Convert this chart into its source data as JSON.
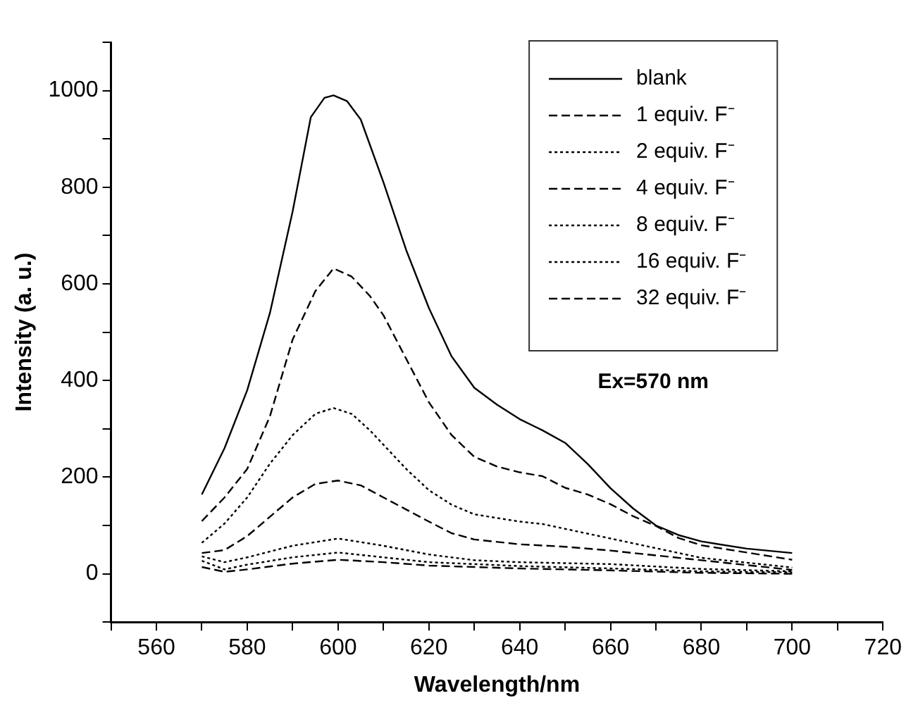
{
  "chart_data": {
    "type": "line",
    "xlabel": "Wavelength/nm",
    "ylabel": "Intensity (a. u.)",
    "xlim": [
      550,
      720
    ],
    "xticks": [
      {
        "value": 550,
        "label": null
      },
      560,
      {
        "value": 570,
        "label": null
      },
      580,
      {
        "value": 590,
        "label": null
      },
      600,
      {
        "value": 610,
        "label": null
      },
      620,
      {
        "value": 630,
        "label": null
      },
      640,
      {
        "value": 650,
        "label": null
      },
      660,
      {
        "value": 670,
        "label": null
      },
      680,
      {
        "value": 690,
        "label": null
      },
      700,
      {
        "value": 710,
        "label": null
      },
      720
    ],
    "ylim": [
      -100,
      1100
    ],
    "yticks": [
      {
        "value": -100,
        "label": null
      },
      0,
      {
        "value": 100,
        "label": null
      },
      200,
      {
        "value": 300,
        "label": null
      },
      400,
      {
        "value": 500,
        "label": null
      },
      600,
      {
        "value": 700,
        "label": null
      },
      800,
      {
        "value": 900,
        "label": null
      },
      1000,
      {
        "value": 1100,
        "label": null
      }
    ],
    "grid": false,
    "legend": "top right",
    "marker": "none",
    "annotations": [
      "Ex=570 nm"
    ],
    "series": [
      {
        "name": "blank",
        "color": "#000000",
        "line_style": "solid",
        "x": [
          570,
          575,
          580,
          585,
          590,
          594,
          597,
          599,
          602,
          605,
          610,
          615,
          620,
          625,
          630,
          635,
          640,
          645,
          650,
          655,
          660,
          665,
          670,
          675,
          680,
          690,
          700
        ],
        "values": [
          164,
          260,
          380,
          540,
          750,
          945,
          985,
          990,
          978,
          940,
          810,
          670,
          550,
          450,
          385,
          350,
          320,
          297,
          271,
          227,
          177,
          135,
          100,
          80,
          67,
          52,
          43
        ]
      },
      {
        "name": "1 equiv. F⁻",
        "color": "#000000",
        "line_style": "dashed",
        "x": [
          570,
          575,
          580,
          585,
          590,
          595,
          599,
          603,
          607,
          610,
          615,
          620,
          625,
          630,
          635,
          640,
          645,
          650,
          655,
          660,
          665,
          670,
          675,
          680,
          690,
          700
        ],
        "values": [
          109,
          158,
          217,
          326,
          485,
          585,
          632,
          615,
          575,
          535,
          445,
          355,
          287,
          242,
          222,
          210,
          202,
          178,
          164,
          144,
          119,
          99,
          74,
          59,
          44,
          29
        ]
      },
      {
        "name": "2 equiv. F⁻",
        "color": "#000000",
        "line_style": "dotted",
        "x": [
          570,
          575,
          580,
          585,
          590,
          595,
          599,
          603,
          607,
          610,
          615,
          620,
          625,
          630,
          640,
          645,
          650,
          660,
          670,
          680,
          690,
          700
        ],
        "values": [
          64,
          104,
          158,
          228,
          287,
          331,
          343,
          331,
          297,
          267,
          217,
          173,
          143,
          123,
          108,
          103,
          93,
          73,
          53,
          33,
          23,
          13
        ]
      },
      {
        "name": "4 equiv. F⁻",
        "color": "#000000",
        "line_style": "dashed",
        "x": [
          570,
          575,
          580,
          585,
          590,
          595,
          600,
          605,
          610,
          615,
          620,
          625,
          630,
          640,
          650,
          660,
          670,
          680,
          690,
          700
        ],
        "values": [
          43,
          49,
          78,
          118,
          158,
          186,
          193,
          183,
          158,
          133,
          108,
          84,
          71,
          61,
          56,
          48,
          38,
          28,
          18,
          8
        ]
      },
      {
        "name": "8 equiv. F⁻",
        "color": "#000000",
        "line_style": "dotted",
        "x": [
          570,
          575,
          580,
          590,
          600,
          610,
          620,
          630,
          640,
          660,
          680,
          700
        ],
        "values": [
          36,
          24,
          34,
          58,
          73,
          58,
          40,
          28,
          24,
          20,
          10,
          5
        ]
      },
      {
        "name": "16 equiv. F⁻",
        "color": "#000000",
        "line_style": "dotted",
        "x": [
          570,
          575,
          580,
          590,
          600,
          610,
          620,
          640,
          660,
          680,
          700
        ],
        "values": [
          27,
          9,
          19,
          34,
          44,
          34,
          24,
          16,
          11,
          5,
          3
        ]
      },
      {
        "name": "32 equiv. F⁻",
        "color": "#000000",
        "line_style": "dashed",
        "x": [
          570,
          575,
          580,
          590,
          600,
          610,
          620,
          640,
          660,
          680,
          700
        ],
        "values": [
          14,
          4,
          9,
          21,
          29,
          24,
          17,
          11,
          7,
          2,
          0
        ]
      }
    ]
  }
}
